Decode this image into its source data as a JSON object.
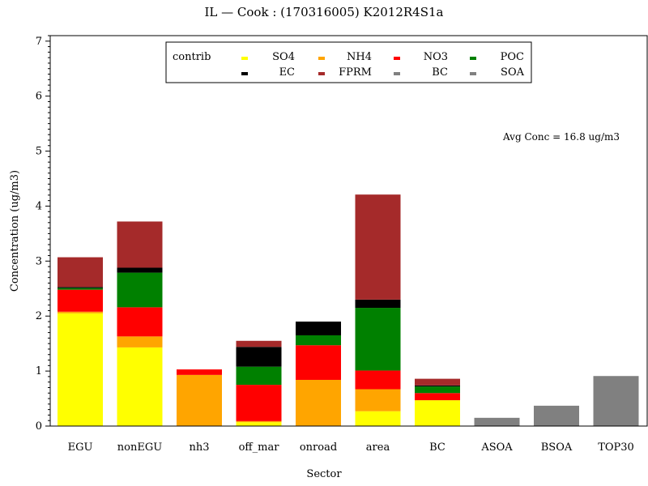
{
  "chart_data": {
    "type": "bar",
    "stacked": true,
    "title": "IL  —  Cook : (170316005) K2012R4S1a",
    "xlabel": "Sector",
    "ylabel": "Concentration (ug/m3)",
    "ylim": [
      0,
      7.1
    ],
    "yticks": [
      0,
      1,
      2,
      3,
      4,
      5,
      6,
      7
    ],
    "grid": false,
    "legend_title": "contrib",
    "legend_position": "top-center",
    "annotation": "Avg Conc =  16.8 ug/m3",
    "categories": [
      "EGU",
      "nonEGU",
      "nh3",
      "off_mar",
      "onroad",
      "area",
      "BC",
      "ASOA",
      "BSOA",
      "TOP30"
    ],
    "series": [
      {
        "name": "SO4",
        "color": "#ffff00",
        "values": [
          2.05,
          1.43,
          0.0,
          0.07,
          0.0,
          0.27,
          0.47,
          0,
          0,
          0
        ]
      },
      {
        "name": "NH4",
        "color": "#ffa500",
        "values": [
          0.03,
          0.2,
          0.93,
          0.02,
          0.84,
          0.4,
          0.0,
          0,
          0,
          0
        ]
      },
      {
        "name": "NO3",
        "color": "#ff0000",
        "values": [
          0.4,
          0.53,
          0.1,
          0.66,
          0.63,
          0.34,
          0.13,
          0,
          0,
          0
        ]
      },
      {
        "name": "POC",
        "color": "#008000",
        "values": [
          0.03,
          0.63,
          0.0,
          0.33,
          0.18,
          1.14,
          0.12,
          0,
          0,
          0
        ]
      },
      {
        "name": "EC",
        "color": "#000000",
        "values": [
          0.02,
          0.09,
          0.0,
          0.36,
          0.25,
          0.15,
          0.02,
          0,
          0,
          0
        ]
      },
      {
        "name": "FPRM",
        "color": "#a52a2a",
        "values": [
          0.54,
          0.84,
          0.0,
          0.11,
          0.0,
          1.91,
          0.12,
          0,
          0,
          0
        ]
      },
      {
        "name": "BC",
        "color": "#808080",
        "values": [
          0,
          0,
          0,
          0,
          0,
          0,
          0,
          0,
          0,
          0
        ]
      },
      {
        "name": "SOA",
        "color": "#808080",
        "values": [
          0,
          0,
          0,
          0,
          0,
          0,
          0,
          0.15,
          0.37,
          0.91
        ]
      }
    ]
  }
}
